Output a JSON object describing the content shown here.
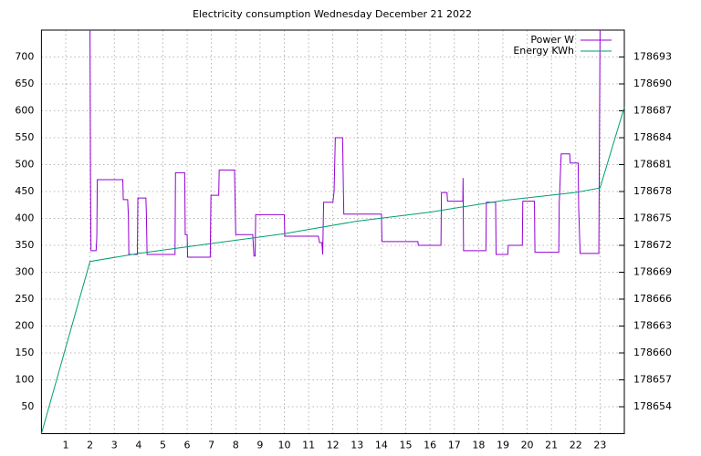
{
  "chart_data": {
    "type": "line",
    "title": "Electricity consumption Wednesday December 21 2022",
    "xlim": [
      0,
      24
    ],
    "xticks": [
      1,
      2,
      3,
      4,
      5,
      6,
      7,
      8,
      9,
      10,
      11,
      12,
      13,
      14,
      15,
      16,
      17,
      18,
      19,
      20,
      21,
      22,
      23
    ],
    "ylim": [
      0,
      750
    ],
    "yticks": [
      50,
      100,
      150,
      200,
      250,
      300,
      350,
      400,
      450,
      500,
      550,
      600,
      650,
      700
    ],
    "y2lim": [
      178651,
      178696
    ],
    "y2ticks": [
      178654,
      178657,
      178660,
      178663,
      178666,
      178669,
      178672,
      178675,
      178678,
      178681,
      178684,
      178687,
      178690,
      178693
    ],
    "grid": true,
    "legend": "top-right",
    "series": [
      {
        "name": "Power W",
        "color": "#9400d3",
        "x": [
          2.0,
          2.02,
          2.04,
          2.25,
          2.28,
          2.3,
          3.35,
          3.37,
          3.55,
          3.58,
          3.6,
          3.95,
          3.97,
          4.3,
          4.32,
          4.35,
          5.5,
          5.52,
          5.9,
          5.92,
          6.0,
          6.02,
          6.95,
          6.98,
          7.3,
          7.32,
          7.95,
          7.97,
          8.0,
          8.7,
          8.75,
          8.8,
          8.82,
          10.0,
          10.02,
          11.4,
          11.45,
          11.55,
          11.58,
          11.62,
          12.0,
          12.05,
          12.1,
          12.4,
          12.45,
          14.0,
          14.02,
          15.5,
          15.52,
          16.45,
          16.47,
          16.7,
          16.72,
          17.35,
          17.36,
          17.38,
          18.3,
          18.32,
          18.7,
          18.72,
          19.2,
          19.22,
          19.8,
          19.82,
          20.3,
          20.32,
          21.3,
          21.32,
          21.4,
          21.75,
          21.77,
          22.1,
          22.12,
          22.18,
          22.95,
          23.0
        ],
        "values": [
          750,
          480,
          340,
          340,
          365,
          472,
          472,
          435,
          435,
          405,
          333,
          333,
          438,
          438,
          410,
          333,
          333,
          485,
          485,
          370,
          370,
          328,
          328,
          443,
          443,
          490,
          490,
          440,
          370,
          370,
          330,
          330,
          407,
          407,
          367,
          367,
          355,
          355,
          333,
          430,
          430,
          450,
          550,
          550,
          408,
          408,
          357,
          357,
          350,
          350,
          448,
          448,
          432,
          432,
          475,
          340,
          340,
          430,
          430,
          333,
          333,
          350,
          350,
          432,
          432,
          337,
          337,
          428,
          520,
          520,
          503,
          503,
          420,
          335,
          335,
          750
        ]
      },
      {
        "name": "Energy KWh",
        "color": "#009e73",
        "axis": "y2",
        "x": [
          0,
          2,
          4,
          7,
          10,
          13,
          16,
          19,
          22,
          23,
          24
        ],
        "values": [
          178651,
          178670.2,
          178671.1,
          178672.2,
          178673.3,
          178674.7,
          178675.7,
          178677.0,
          178677.9,
          178678.4,
          178687.4
        ]
      }
    ]
  }
}
